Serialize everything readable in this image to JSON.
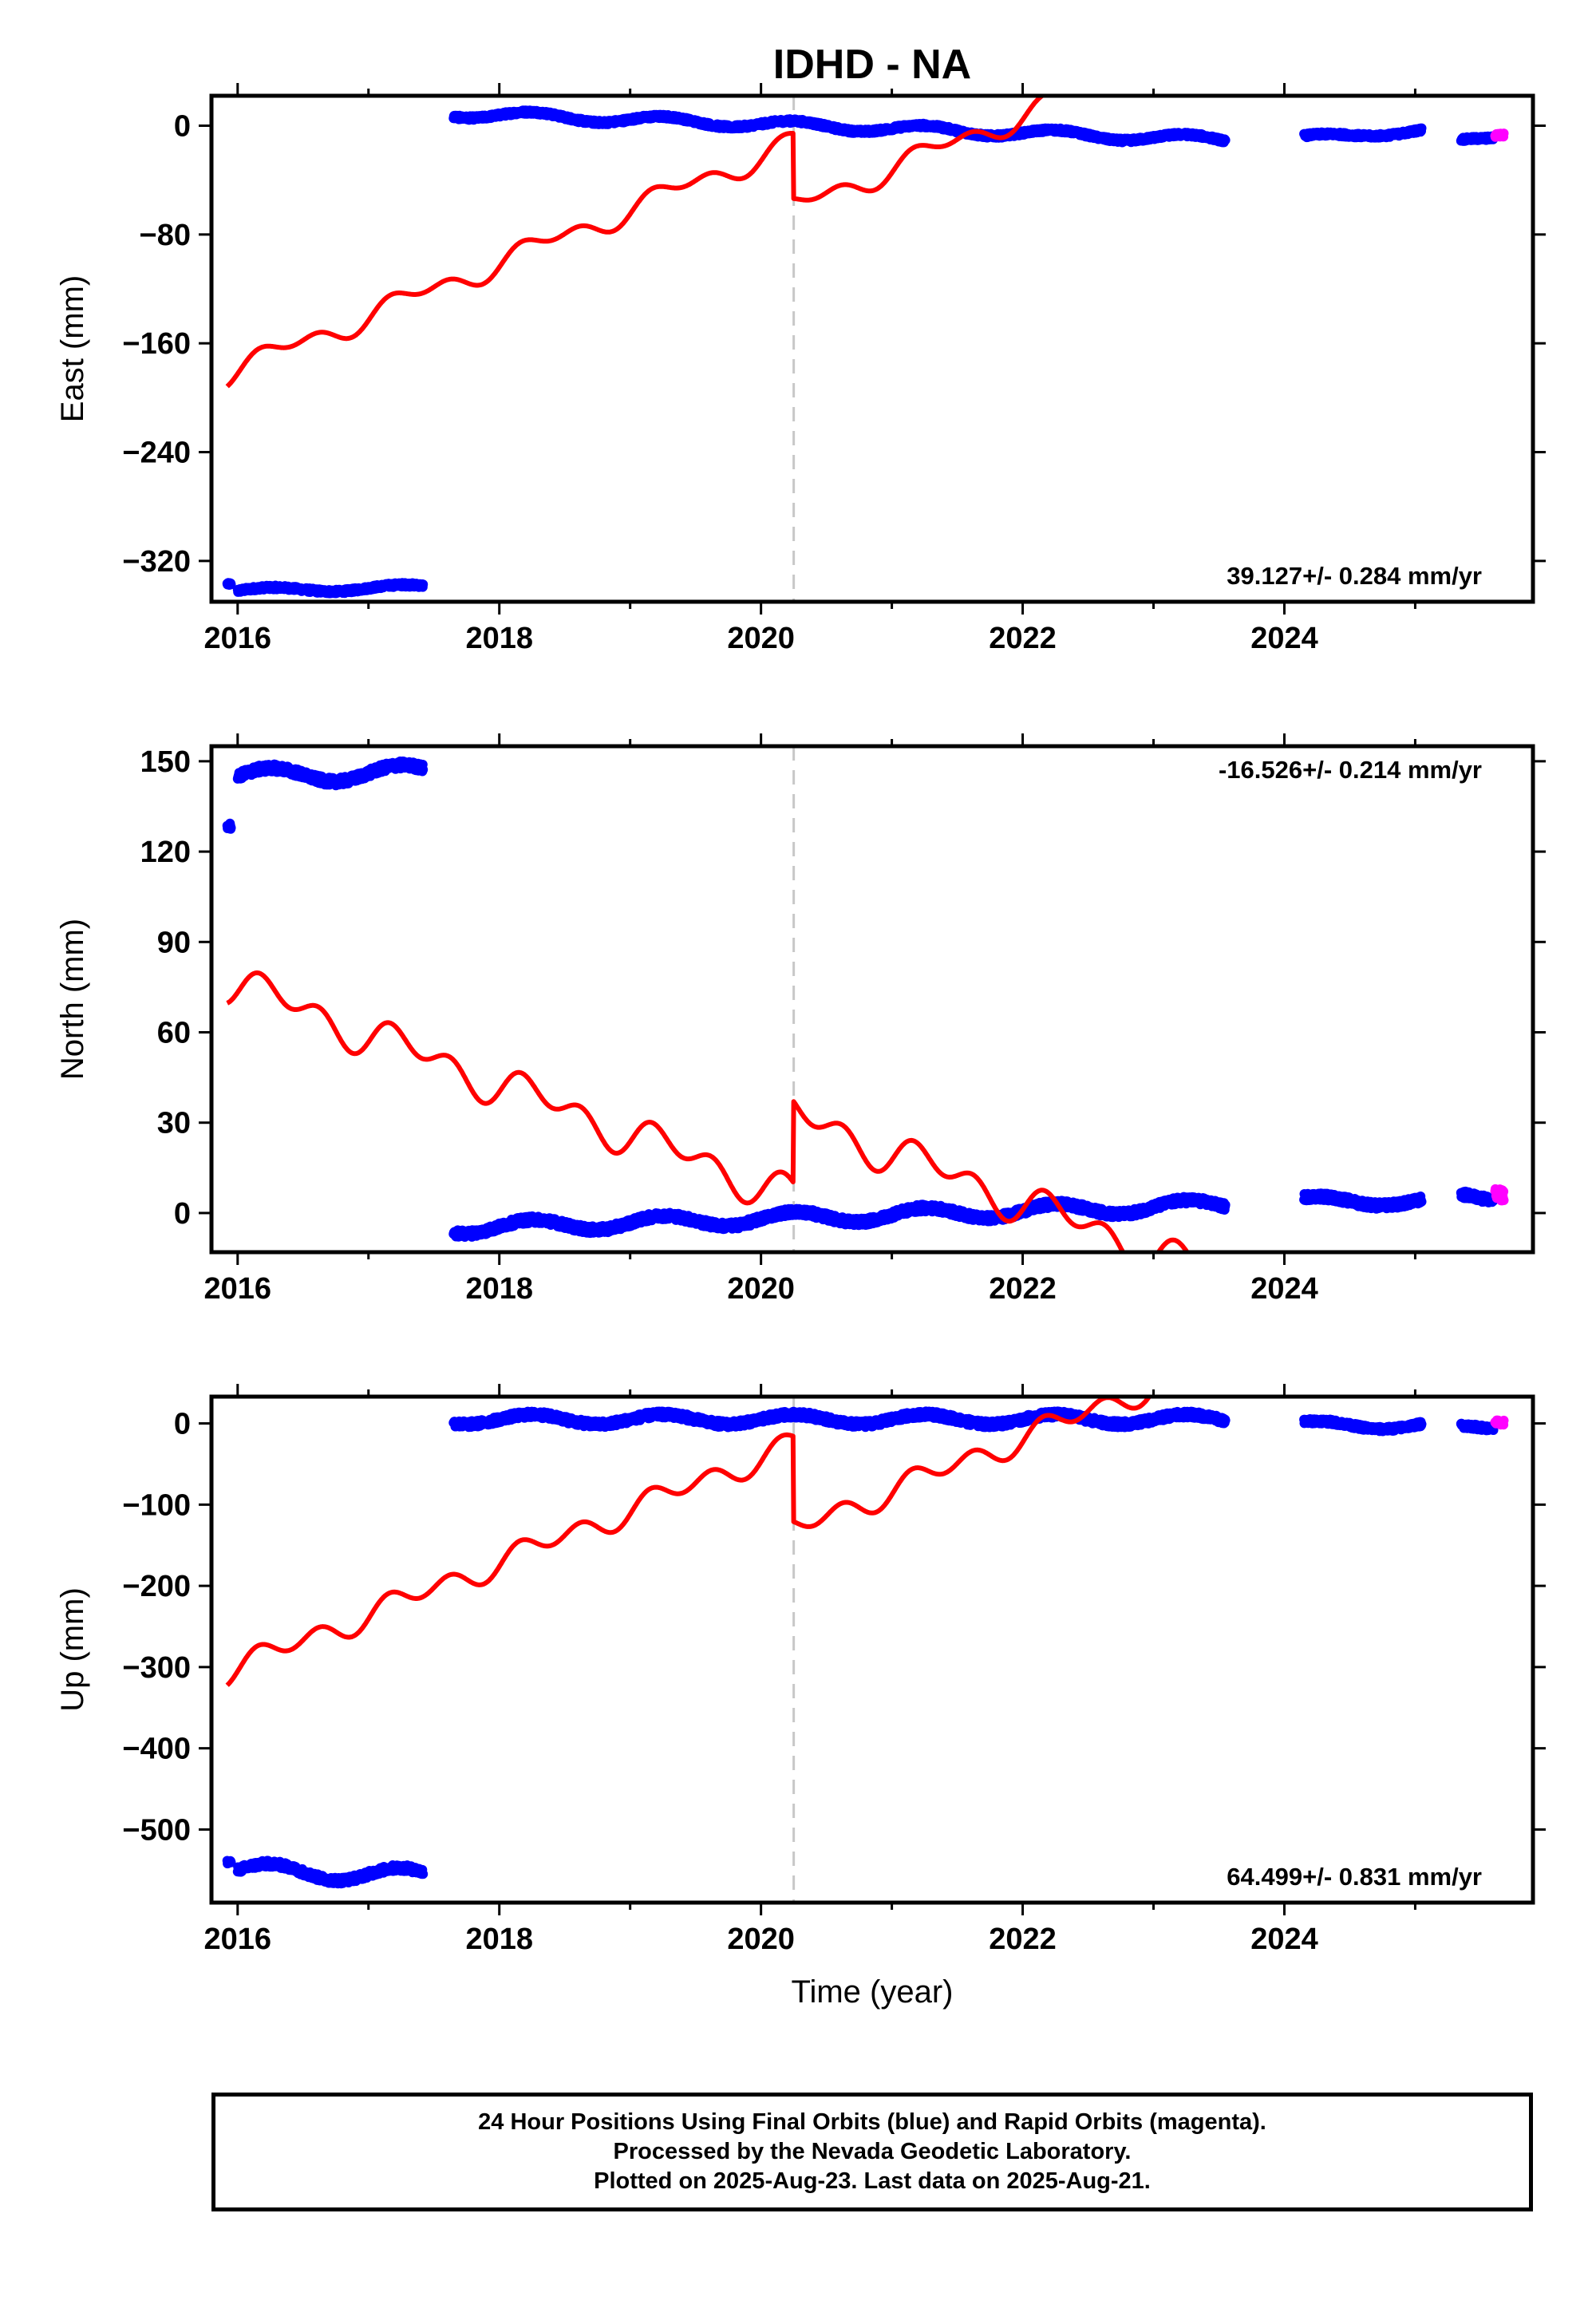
{
  "title": "IDHD - NA",
  "colors": {
    "final": "#0000ff",
    "rapid": "#ff00ff",
    "model": "#ff0000",
    "event": "#c8c8c8"
  },
  "chart_data": [
    {
      "type": "scatter",
      "ylabel": "East (mm)",
      "xlabel": "",
      "rate_label": "39.127+/- 0.284 mm/yr",
      "rate_position": "bottom-right",
      "xlim": [
        2015.8,
        2025.9
      ],
      "ylim": [
        -350,
        22
      ],
      "yticks": [
        0,
        -80,
        -160,
        -240,
        -320
      ],
      "xticks": [
        2016,
        2018,
        2020,
        2022,
        2024
      ],
      "equipment_change": 2020.25,
      "series": [
        {
          "role": "final",
          "color": "#0000ff",
          "segments": [
            {
              "start": 2015.92,
              "end": 2015.95,
              "base": -337,
              "slope": 0,
              "amp": 0,
              "noise": 1
            },
            {
              "start": 2016.0,
              "end": 2017.42,
              "base": -342,
              "slope": 2,
              "amp": 2,
              "noise": 1.5
            },
            {
              "start": 2017.65,
              "end": 2023.55,
              "base": 9,
              "slope": -3.3,
              "amp": 3,
              "noise": 1.5
            },
            {
              "start": 2024.15,
              "end": 2025.05,
              "base": -9,
              "slope": 6,
              "amp": 2,
              "noise": 1.5
            },
            {
              "start": 2025.35,
              "end": 2025.6,
              "base": -10,
              "slope": 4,
              "amp": 0,
              "noise": 1.5
            }
          ]
        },
        {
          "role": "rapid",
          "color": "#ff00ff",
          "segments": [
            {
              "start": 2025.61,
              "end": 2025.68,
              "base": -7,
              "slope": 0,
              "amp": 0,
              "noise": 1.5
            }
          ]
        }
      ],
      "model": {
        "color": "#ff0000",
        "start": 2015.92,
        "end": 2023.58,
        "y0": -182,
        "rate": 39.127,
        "amp_annual": 6.5,
        "amp_semiannual": 5,
        "offset_at": 2020.25,
        "offset": -48
      }
    },
    {
      "type": "scatter",
      "ylabel": "North (mm)",
      "xlabel": "",
      "rate_label": "-16.526+/- 0.214 mm/yr",
      "rate_position": "top-right",
      "xlim": [
        2015.8,
        2025.9
      ],
      "ylim": [
        -13,
        155
      ],
      "yticks": [
        150,
        120,
        90,
        60,
        30,
        0
      ],
      "xticks": [
        2016,
        2018,
        2020,
        2022,
        2024
      ],
      "equipment_change": 2020.25,
      "series": [
        {
          "role": "final",
          "color": "#0000ff",
          "segments": [
            {
              "start": 2015.92,
              "end": 2015.95,
              "base": 128.5,
              "slope": 0,
              "amp": 0,
              "noise": 1
            },
            {
              "start": 2016.0,
              "end": 2017.42,
              "base": 145,
              "slope": 1,
              "amp": 2.5,
              "noise": 1.3
            },
            {
              "start": 2017.65,
              "end": 2023.55,
              "base": -5,
              "slope": 1.3,
              "amp": 2,
              "noise": 1.2
            },
            {
              "start": 2024.15,
              "end": 2025.05,
              "base": 4,
              "slope": 0,
              "amp": 1.5,
              "noise": 1.2
            },
            {
              "start": 2025.35,
              "end": 2025.6,
              "base": 5,
              "slope": 0,
              "amp": 1.5,
              "noise": 1.2
            }
          ]
        },
        {
          "role": "rapid",
          "color": "#ff00ff",
          "segments": [
            {
              "start": 2025.61,
              "end": 2025.68,
              "base": 6,
              "slope": 0,
              "amp": 0,
              "noise": 2
            }
          ]
        }
      ],
      "model": {
        "color": "#ff0000",
        "start": 2015.92,
        "end": 2023.58,
        "y0": 77,
        "rate": -16.526,
        "amp_annual": 4,
        "amp_semiannual": 4.5,
        "offset_at": 2020.25,
        "offset": 27
      }
    },
    {
      "type": "scatter",
      "ylabel": "Up (mm)",
      "xlabel": "Time (year)",
      "rate_label": "64.499+/- 0.831 mm/yr",
      "rate_position": "bottom-right",
      "xlim": [
        2015.8,
        2025.9
      ],
      "ylim": [
        -590,
        33
      ],
      "yticks": [
        0,
        -100,
        -200,
        -300,
        -400,
        -500
      ],
      "xticks": [
        2016,
        2018,
        2020,
        2022,
        2024
      ],
      "equipment_change": 2020.25,
      "series": [
        {
          "role": "final",
          "color": "#0000ff",
          "segments": [
            {
              "start": 2015.92,
              "end": 2015.95,
              "base": -540,
              "slope": 0,
              "amp": 0,
              "noise": 2
            },
            {
              "start": 2016.0,
              "end": 2017.42,
              "base": -550,
              "slope": -5,
              "amp": 9,
              "noise": 4
            },
            {
              "start": 2017.65,
              "end": 2023.55,
              "base": 5,
              "slope": 0,
              "amp": 6,
              "noise": 4
            },
            {
              "start": 2024.15,
              "end": 2025.05,
              "base": -2,
              "slope": 0,
              "amp": 5,
              "noise": 3
            },
            {
              "start": 2025.35,
              "end": 2025.6,
              "base": -5,
              "slope": 0,
              "amp": 3,
              "noise": 3
            }
          ]
        },
        {
          "role": "rapid",
          "color": "#ff00ff",
          "segments": [
            {
              "start": 2025.61,
              "end": 2025.68,
              "base": 1,
              "slope": 0,
              "amp": 0,
              "noise": 3
            }
          ]
        }
      ],
      "model": {
        "color": "#ff0000",
        "start": 2015.92,
        "end": 2023.58,
        "y0": -305,
        "rate": 64.499,
        "amp_annual": 8,
        "amp_semiannual": 12,
        "offset_at": 2020.25,
        "offset": -105
      }
    }
  ],
  "footer": {
    "line1": "24 Hour Positions Using Final Orbits (blue) and Rapid Orbits (magenta).",
    "line2": "Processed by the Nevada Geodetic Laboratory.",
    "line3": "Plotted on 2025-Aug-23. Last data on 2025-Aug-21."
  }
}
